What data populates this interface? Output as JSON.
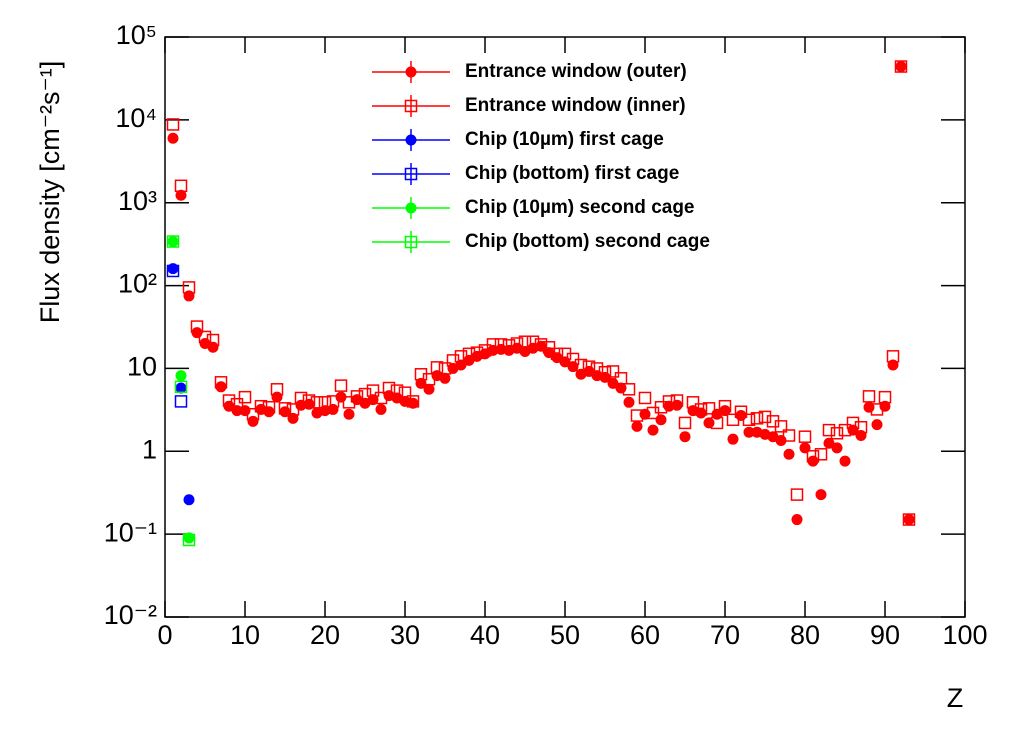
{
  "chart_data": {
    "type": "scatter",
    "log_y": true,
    "y_label": "Flux density [cm⁻²s⁻¹]",
    "x_label": "Z",
    "xlim": [
      0,
      100
    ],
    "xticks": [
      0,
      10,
      20,
      30,
      40,
      50,
      60,
      70,
      80,
      90,
      100
    ],
    "ylim": [
      0.01,
      100000
    ],
    "yticks": [
      {
        "value": 0.01,
        "label": "10⁻²"
      },
      {
        "value": 0.1,
        "label": "10⁻¹"
      },
      1,
      10,
      {
        "value": 100,
        "label": "10²"
      },
      {
        "value": 1000,
        "label": "10³"
      },
      {
        "value": 10000,
        "label": "10⁴"
      },
      {
        "value": 100000,
        "label": "10⁵"
      }
    ],
    "series": [
      {
        "name": "Entrance window (outer)",
        "color": "#ff0000",
        "marker": "filled-circle",
        "x": [
          1,
          2,
          3,
          4,
          5,
          6,
          7,
          8,
          9,
          10,
          11,
          12,
          13,
          14,
          15,
          16,
          17,
          18,
          19,
          20,
          21,
          22,
          23,
          24,
          25,
          26,
          27,
          28,
          29,
          30,
          31,
          32,
          33,
          34,
          35,
          36,
          37,
          38,
          39,
          40,
          41,
          42,
          43,
          44,
          45,
          46,
          47,
          48,
          49,
          50,
          51,
          52,
          53,
          54,
          55,
          56,
          57,
          58,
          59,
          60,
          61,
          62,
          63,
          64,
          65,
          66,
          67,
          68,
          69,
          70,
          71,
          72,
          73,
          74,
          75,
          76,
          77,
          78,
          79,
          80,
          81,
          82,
          83,
          84,
          85,
          86,
          87,
          88,
          89,
          90,
          91,
          92,
          93
        ],
        "values": [
          6000,
          1230,
          75,
          27,
          20,
          18,
          6,
          3.5,
          3.1,
          3.1,
          2.3,
          3.2,
          3,
          4.5,
          3,
          2.5,
          3.6,
          3.7,
          2.9,
          3.1,
          3.2,
          4.5,
          2.8,
          4.2,
          3.8,
          4.2,
          3.2,
          4.7,
          4.4,
          4,
          3.8,
          6.6,
          5.6,
          8.2,
          7.6,
          10,
          11,
          12.5,
          14,
          15,
          16.5,
          17,
          16.5,
          17.5,
          16,
          17.5,
          18.5,
          15.5,
          13.5,
          12,
          10.5,
          8.5,
          9.2,
          8.2,
          7.8,
          6.6,
          5.8,
          3.9,
          2,
          2.8,
          1.8,
          2.4,
          3.5,
          3.6,
          1.5,
          3.1,
          2.9,
          2.2,
          2.8,
          3.1,
          1.4,
          2.7,
          1.7,
          1.7,
          1.6,
          1.5,
          1.35,
          0.92,
          0.15,
          1.1,
          0.76,
          0.3,
          1.25,
          1.1,
          0.76,
          1.8,
          1.55,
          3.4,
          2.1,
          3.5,
          11,
          44000,
          0.15
        ]
      },
      {
        "name": "Entrance window (inner)",
        "color": "#ff0000",
        "marker": "open-square",
        "x": [
          1,
          2,
          3,
          4,
          5,
          6,
          7,
          8,
          9,
          10,
          11,
          12,
          13,
          14,
          15,
          16,
          17,
          18,
          19,
          20,
          21,
          22,
          23,
          24,
          25,
          26,
          27,
          28,
          29,
          30,
          31,
          32,
          33,
          34,
          35,
          36,
          37,
          38,
          39,
          40,
          41,
          42,
          43,
          44,
          45,
          46,
          47,
          48,
          49,
          50,
          51,
          52,
          53,
          54,
          55,
          56,
          57,
          58,
          59,
          60,
          61,
          62,
          63,
          64,
          65,
          66,
          67,
          68,
          69,
          70,
          71,
          72,
          73,
          74,
          75,
          76,
          77,
          78,
          79,
          80,
          81,
          82,
          83,
          84,
          85,
          86,
          87,
          88,
          89,
          90,
          91,
          92,
          93
        ],
        "values": [
          8800,
          1600,
          95,
          32,
          24,
          22,
          6.8,
          4.1,
          3.7,
          4.5,
          2.8,
          3.5,
          3.4,
          5.6,
          3.3,
          3.2,
          4.4,
          4.1,
          3.9,
          3.9,
          4,
          6.2,
          3.9,
          4.6,
          4.9,
          5.4,
          4.4,
          5.8,
          5.4,
          5.1,
          4,
          8.5,
          7.4,
          10.3,
          10,
          12.5,
          14,
          15,
          15.5,
          16.5,
          19.5,
          19.5,
          19,
          20,
          21,
          21,
          19.5,
          18,
          15,
          15,
          13,
          11,
          10.5,
          10,
          9,
          9.2,
          7.6,
          5.6,
          2.7,
          4.4,
          2.9,
          3.4,
          4,
          4.1,
          2.2,
          3.9,
          3.2,
          3.3,
          2.2,
          3.5,
          2.4,
          3,
          2.4,
          2.5,
          2.6,
          2.3,
          2,
          1.55,
          0.3,
          1.5,
          0.87,
          0.92,
          1.8,
          1.65,
          1.8,
          2.2,
          1.95,
          4.6,
          3.2,
          4.5,
          14,
          44000,
          0.15
        ]
      },
      {
        "name": "Chip (10µm) first cage",
        "color": "#0000ff",
        "marker": "filled-circle",
        "x": [
          1,
          2,
          3
        ],
        "values": [
          160,
          5.8,
          0.26
        ]
      },
      {
        "name": "Chip (bottom) first cage",
        "color": "#0000ff",
        "marker": "open-square",
        "x": [
          1,
          2
        ],
        "values": [
          150,
          4
        ]
      },
      {
        "name": "Chip (10µm) second cage",
        "color": "#00ff00",
        "marker": "filled-circle",
        "x": [
          1,
          2,
          3
        ],
        "values": [
          340,
          8.2,
          0.09
        ]
      },
      {
        "name": "Chip (bottom) second cage",
        "color": "#00ff00",
        "marker": "open-square",
        "x": [
          1,
          2,
          3
        ],
        "values": [
          340,
          6,
          0.085
        ]
      }
    ]
  }
}
